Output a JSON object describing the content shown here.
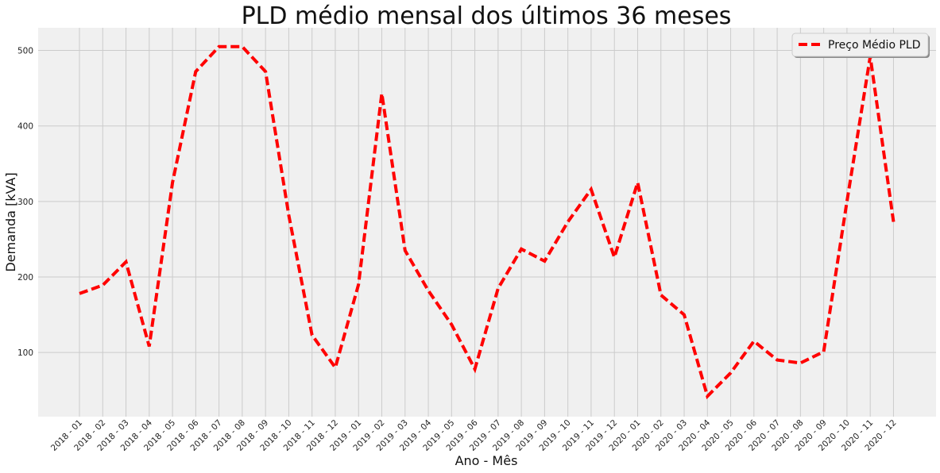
{
  "chart_data": {
    "type": "line",
    "title": "PLD médio mensal dos últimos 36 meses",
    "xlabel": "Ano - Mês",
    "ylabel": "Demanda [kVA]",
    "ylim": [
      15,
      530
    ],
    "yticks": [
      100,
      200,
      300,
      400,
      500
    ],
    "grid": true,
    "legend_position": "top-right",
    "categories": [
      "2018 - 01",
      "2018 - 02",
      "2018 - 03",
      "2018 - 04",
      "2018 - 05",
      "2018 - 06",
      "2018 - 07",
      "2018 - 08",
      "2018 - 09",
      "2018 - 10",
      "2018 - 11",
      "2018 - 12",
      "2019 - 01",
      "2019 - 02",
      "2019 - 03",
      "2019 - 04",
      "2019 - 05",
      "2019 - 06",
      "2019 - 07",
      "2019 - 08",
      "2019 - 09",
      "2019 - 10",
      "2019 - 11",
      "2019 - 12",
      "2020 - 01",
      "2020 - 02",
      "2020 - 03",
      "2020 - 04",
      "2020 - 05",
      "2020 - 06",
      "2020 - 07",
      "2020 - 08",
      "2020 - 09",
      "2020 - 10",
      "2020 - 11",
      "2020 - 12"
    ],
    "series": [
      {
        "name": "Preço Médio PLD",
        "color": "#ff0000",
        "line_style": "dashed",
        "values": [
          178,
          189,
          220,
          108,
          325,
          472,
          505,
          505,
          472,
          282,
          123,
          80,
          190,
          443,
          235,
          182,
          137,
          78,
          185,
          237,
          221,
          273,
          316,
          226,
          325,
          176,
          150,
          42,
          73,
          115,
          90,
          86,
          101,
          300,
          492,
          273
        ]
      }
    ]
  }
}
